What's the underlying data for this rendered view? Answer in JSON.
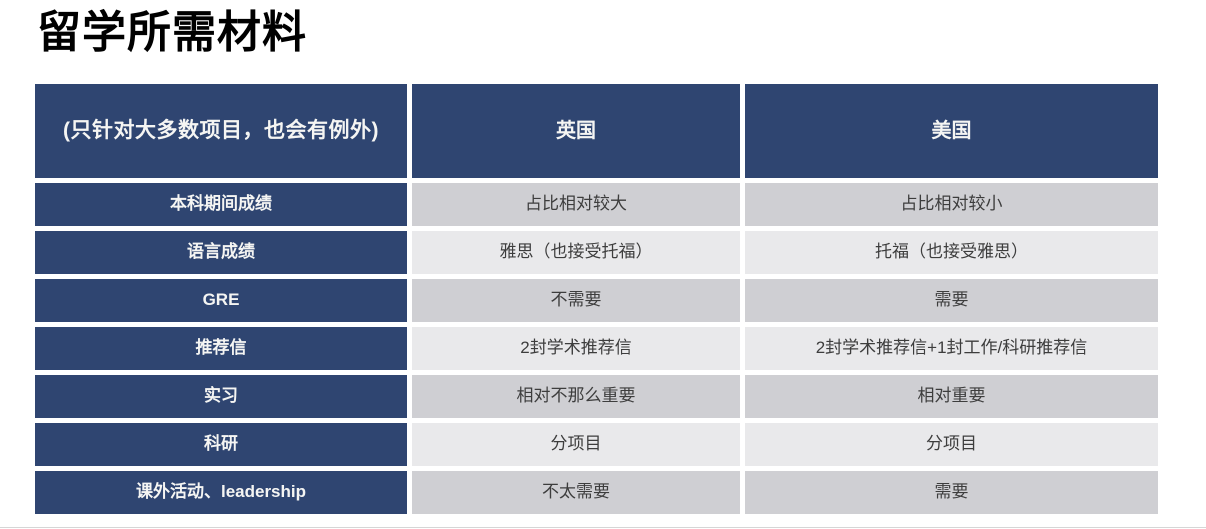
{
  "title": "留学所需材料",
  "colors": {
    "header_navy": "#2f4571",
    "row_shade_dark": "#cfcfd3",
    "row_shade_light": "#e9e9eb",
    "header_text": "#f5f5f3",
    "body_text": "#3d3d3d",
    "title_text": "#000000"
  },
  "table": {
    "header": {
      "note": "(只针对大多数项目，也会有例外)",
      "uk": "英国",
      "us": "美国"
    },
    "rows": [
      {
        "label": "本科期间成绩",
        "uk": "占比相对较大",
        "us": "占比相对较小"
      },
      {
        "label": "语言成绩",
        "uk": "雅思（也接受托福）",
        "us": "托福（也接受雅思）"
      },
      {
        "label": "GRE",
        "uk": "不需要",
        "us": "需要"
      },
      {
        "label": "推荐信",
        "uk": "2封学术推荐信",
        "us": "2封学术推荐信+1封工作/科研推荐信"
      },
      {
        "label": "实习",
        "uk": "相对不那么重要",
        "us": "相对重要"
      },
      {
        "label": "科研",
        "uk": "分项目",
        "us": "分项目"
      },
      {
        "label": "课外活动、leadership",
        "uk": "不太需要",
        "us": "需要"
      }
    ]
  }
}
